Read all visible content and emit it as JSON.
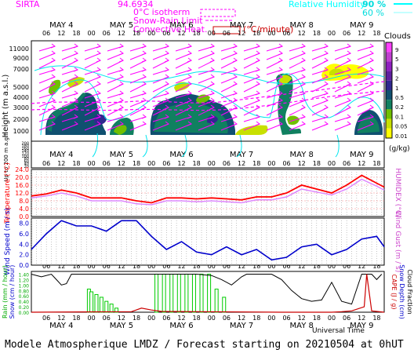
{
  "header": {
    "station": "SIRTA",
    "coords": "94.6934",
    "legend_isotherm": "0°C isotherm",
    "legend_snowrain": "Snow-Rain Limit",
    "legend_convective": "Convective Heat.",
    "legend_convective_unit": "(°C/minute)",
    "legend_rh": "Relative Humidity",
    "rh_90": "90 %",
    "rh_60": "60 %"
  },
  "colors": {
    "magenta": "#ff00ff",
    "cyan": "#00ffff",
    "red": "#ff0000",
    "blue": "#0000cc",
    "green": "#00cc00",
    "cloud_scale": [
      "#ffff00",
      "#c8e000",
      "#70c000",
      "#108060",
      "#105070",
      "#302890",
      "#6020a0",
      "#9020c0",
      "#c040d0",
      "#ff40ff"
    ]
  },
  "time_axis": {
    "day_labels": [
      "MAY 4",
      "MAY 5",
      "MAY 6",
      "MAY 7",
      "MAY 8",
      "MAY 9"
    ],
    "hour_labels": [
      "06",
      "12",
      "18",
      "00",
      "06",
      "12",
      "18",
      "00",
      "06",
      "12",
      "18",
      "00",
      "06",
      "12",
      "18",
      "00",
      "06",
      "12",
      "18",
      "00",
      "06",
      "12",
      "18"
    ],
    "xlabel": "Universal Time"
  },
  "panel_cloud": {
    "ylabel": "Height (m a.s.l.)",
    "ylabel_low": "Up to 200 m a.g.l.",
    "yticks_upper": [
      "1000",
      "2000",
      "3000",
      "4000",
      "5000",
      "7000",
      "9000",
      "11000"
    ],
    "yticks_lower": [
      "20",
      "40",
      "60",
      "80",
      "100",
      "120",
      "140",
      "160",
      "180",
      "200"
    ],
    "colorbar_title": "Clouds",
    "colorbar_ticks": [
      "9",
      "5",
      "3",
      "2",
      "1",
      "0.5",
      "0.2",
      "0.1",
      "0.05",
      "0.01"
    ],
    "colorbar_unit": "(g/kg)"
  },
  "panel_temp": {
    "ylabel": "Temperature (°C)",
    "ylabel_right": "HUMIDEX (°C)",
    "yticks": [
      "0.0",
      "4.0",
      "8.0",
      "12.0",
      "16.0",
      "20.0",
      "24.0"
    ]
  },
  "panel_wind": {
    "ylabel": "Wind Speed (m / s)",
    "ylabel_right": "Wind Gust (m / s)",
    "yticks": [
      "0.0",
      "2.0",
      "4.0",
      "6.0",
      "8.0"
    ]
  },
  "panel_precip": {
    "ylabel_rain": "Rain (mm / hour)",
    "ylabel_snow": "Snow (cm / hour)",
    "ylabel_cape": "CAPE (J / g)",
    "ylabel_snowdepth": "Snow Depth (cm)",
    "ylabel_cloudfrac": "Cloud Fraction",
    "yticks": [
      "0.00",
      "0.20",
      "0.40",
      "0.60",
      "0.80",
      "1.00",
      "1.20",
      "1.40"
    ]
  },
  "footer": "Modele Atmospherique LMDZ / Forecast starting on 20210504 at 0hUT",
  "chart_data": [
    {
      "type": "line",
      "title": "Temperature",
      "xlabel": "Universal Time",
      "ylabel": "Temperature (°C)",
      "ylim": [
        0,
        24
      ],
      "x_hours": [
        0,
        6,
        12,
        18,
        24,
        30,
        36,
        42,
        48,
        54,
        60,
        66,
        72,
        78,
        84,
        90,
        96,
        102,
        108,
        114,
        120,
        126,
        132,
        138,
        141
      ],
      "series": [
        {
          "name": "Temperature",
          "values": [
            10.5,
            11.5,
            13.5,
            12.0,
            9.5,
            9.5,
            9.5,
            8.0,
            7.0,
            9.5,
            9.5,
            9.0,
            9.5,
            9.0,
            8.5,
            10.0,
            10.0,
            12.0,
            16.0,
            14.0,
            12.0,
            16.0,
            21.0,
            17.0,
            15.0
          ]
        },
        {
          "name": "HUMIDEX",
          "values": [
            9.5,
            10.5,
            12.0,
            10.5,
            8.0,
            8.0,
            8.0,
            6.5,
            6.0,
            8.0,
            8.0,
            7.5,
            8.0,
            7.5,
            7.0,
            8.5,
            8.5,
            10.0,
            14.0,
            12.5,
            11.0,
            14.0,
            19.0,
            15.5,
            13.5
          ]
        }
      ]
    },
    {
      "type": "line",
      "title": "Wind Speed",
      "xlabel": "Universal Time",
      "ylabel": "Wind Speed (m / s)",
      "ylim": [
        0,
        9
      ],
      "x_hours": [
        0,
        6,
        12,
        18,
        24,
        30,
        36,
        42,
        48,
        54,
        60,
        66,
        72,
        78,
        84,
        90,
        96,
        102,
        108,
        114,
        120,
        126,
        132,
        138,
        141
      ],
      "series": [
        {
          "name": "Wind Speed",
          "values": [
            3.0,
            6.0,
            8.5,
            7.5,
            7.5,
            6.5,
            8.5,
            8.5,
            5.5,
            3.0,
            4.5,
            2.5,
            2.0,
            3.5,
            2.0,
            3.0,
            1.0,
            1.5,
            3.5,
            4.0,
            2.0,
            3.0,
            5.0,
            5.5,
            3.5
          ]
        },
        {
          "name": "Wind Gust",
          "values": [
            3.0,
            6.0,
            8.5,
            7.5,
            7.5,
            6.5,
            8.5,
            8.5,
            5.5,
            3.0,
            4.5,
            2.5,
            2.0,
            3.5,
            2.0,
            3.0,
            1.0,
            1.5,
            3.5,
            4.0,
            2.0,
            3.0,
            5.0,
            5.5,
            3.5
          ]
        }
      ]
    },
    {
      "type": "bar",
      "title": "Precipitation",
      "xlabel": "Universal Time",
      "ylabel": "Rain (mm / hour)",
      "ylim": [
        0,
        1.5
      ],
      "rain_bars": [
        {
          "hour": 23,
          "value": 0.85
        },
        {
          "hour": 24,
          "value": 0.75
        },
        {
          "hour": 26,
          "value": 0.65
        },
        {
          "hour": 28,
          "value": 0.55
        },
        {
          "hour": 30,
          "value": 0.4
        },
        {
          "hour": 32,
          "value": 0.3
        },
        {
          "hour": 34,
          "value": 0.15
        },
        {
          "hour": 50,
          "value": 1.4
        },
        {
          "hour": 53,
          "value": 1.4
        },
        {
          "hour": 56,
          "value": 1.4
        },
        {
          "hour": 59,
          "value": 1.4
        },
        {
          "hour": 62,
          "value": 1.4
        },
        {
          "hour": 65,
          "value": 1.4
        },
        {
          "hour": 68,
          "value": 1.4
        },
        {
          "hour": 71,
          "value": 1.4
        },
        {
          "hour": 74,
          "value": 0.85
        },
        {
          "hour": 77,
          "value": 0.55
        }
      ],
      "cloud_fraction": {
        "x_hours": [
          0,
          4,
          8,
          10,
          12,
          14,
          16,
          20,
          24,
          48,
          52,
          56,
          60,
          66,
          72,
          76,
          80,
          84,
          86,
          88,
          96,
          100,
          104,
          108,
          112,
          116,
          120,
          124,
          128,
          132,
          136,
          138,
          140
        ],
        "values": [
          1.4,
          1.3,
          1.4,
          1.2,
          1.0,
          1.05,
          1.4,
          1.4,
          1.4,
          1.4,
          1.4,
          1.4,
          1.4,
          1.4,
          1.35,
          1.2,
          1.0,
          1.3,
          1.4,
          1.4,
          1.4,
          1.2,
          0.8,
          0.5,
          0.4,
          0.45,
          1.1,
          0.4,
          0.3,
          1.4,
          1.4,
          1.2,
          1.4
        ]
      },
      "cape": {
        "x_hours": [
          0,
          40,
          44,
          48,
          52,
          100,
          120,
          124,
          128,
          133,
          134,
          136,
          141
        ],
        "values": [
          0,
          0.02,
          0.15,
          0.08,
          0.03,
          0.0,
          0.0,
          0.02,
          0.05,
          0.2,
          1.4,
          0.05,
          0.0
        ]
      }
    }
  ]
}
